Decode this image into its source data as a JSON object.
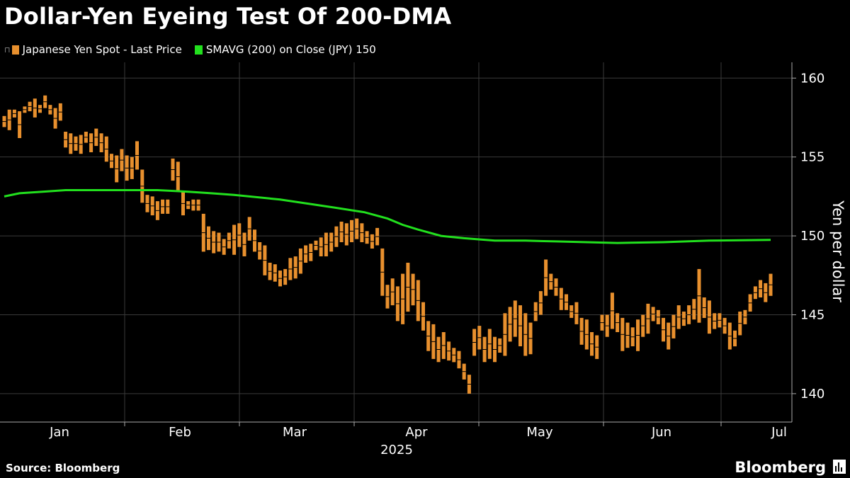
{
  "header": {
    "title": "Dollar-Yen Eyeing Test Of 200-DMA"
  },
  "legend": {
    "series1": "Japanese Yen Spot - Last Price",
    "series2": "SMAVG (200)  on Close (JPY) 150"
  },
  "footer": {
    "source": "Source: Bloomberg",
    "brand": "Bloomberg"
  },
  "colors": {
    "bars": "#e8902e",
    "sma": "#22e01e",
    "grid": "#3a3a3a",
    "background": "#000000"
  },
  "chart_data": {
    "type": "bar",
    "subtype": "floating-range",
    "ylabel": "Yen per dollar",
    "ylim": [
      138.2,
      161
    ],
    "y_ticks": [
      140,
      145,
      150,
      155,
      160
    ],
    "x_ticks": [
      "Jan",
      "Feb",
      "Mar",
      "Apr",
      "May",
      "Jun",
      "Jul"
    ],
    "x_year_label": "2025",
    "grid": true,
    "series": [
      {
        "name": "Japanese Yen Spot - Last Price",
        "ranges": [
          [
            156.9,
            157.6
          ],
          [
            156.7,
            158.0
          ],
          [
            157.5,
            158.0
          ],
          [
            156.2,
            157.9
          ],
          [
            157.8,
            158.2
          ],
          [
            157.9,
            158.5
          ],
          [
            157.5,
            158.7
          ],
          [
            157.8,
            158.3
          ],
          [
            158.1,
            158.9
          ],
          [
            157.7,
            158.3
          ],
          [
            156.8,
            158.1
          ],
          [
            157.3,
            158.4
          ],
          [
            155.6,
            156.6
          ],
          [
            155.2,
            156.5
          ],
          [
            155.4,
            156.3
          ],
          [
            155.2,
            156.4
          ],
          [
            155.9,
            156.6
          ],
          [
            155.3,
            156.5
          ],
          [
            155.7,
            156.8
          ],
          [
            155.3,
            156.5
          ],
          [
            154.7,
            156.3
          ],
          [
            154.3,
            155.2
          ],
          [
            153.4,
            155.1
          ],
          [
            154.1,
            155.5
          ],
          [
            153.5,
            155.1
          ],
          [
            153.6,
            155.0
          ],
          [
            154.2,
            156.0
          ],
          [
            152.1,
            154.2
          ],
          [
            151.5,
            152.6
          ],
          [
            151.3,
            152.5
          ],
          [
            151.0,
            152.2
          ],
          [
            151.4,
            152.3
          ],
          [
            151.4,
            152.3
          ],
          [
            153.5,
            154.9
          ],
          [
            152.8,
            154.7
          ],
          [
            151.3,
            152.8
          ],
          [
            151.7,
            152.2
          ],
          [
            151.6,
            152.3
          ],
          [
            151.6,
            152.3
          ],
          [
            149.0,
            151.4
          ],
          [
            149.1,
            150.6
          ],
          [
            148.9,
            150.3
          ],
          [
            149.0,
            150.2
          ],
          [
            148.8,
            149.8
          ],
          [
            149.2,
            150.2
          ],
          [
            148.8,
            150.7
          ],
          [
            149.3,
            150.8
          ],
          [
            148.7,
            150.2
          ],
          [
            149.7,
            151.2
          ],
          [
            149.0,
            150.4
          ],
          [
            148.5,
            149.6
          ],
          [
            147.5,
            149.4
          ],
          [
            147.2,
            148.3
          ],
          [
            147.1,
            148.2
          ],
          [
            146.8,
            147.8
          ],
          [
            146.9,
            147.9
          ],
          [
            147.2,
            148.6
          ],
          [
            147.3,
            148.7
          ],
          [
            147.6,
            149.2
          ],
          [
            148.3,
            149.4
          ],
          [
            148.4,
            149.5
          ],
          [
            149.1,
            149.7
          ],
          [
            148.7,
            149.9
          ],
          [
            148.7,
            150.2
          ],
          [
            149.0,
            150.2
          ],
          [
            149.3,
            150.6
          ],
          [
            149.6,
            150.9
          ],
          [
            149.4,
            150.8
          ],
          [
            149.6,
            151.0
          ],
          [
            149.8,
            151.1
          ],
          [
            149.6,
            150.8
          ],
          [
            149.5,
            150.3
          ],
          [
            149.2,
            150.1
          ],
          [
            149.4,
            150.5
          ],
          [
            146.2,
            149.2
          ],
          [
            145.4,
            146.9
          ],
          [
            145.6,
            147.3
          ],
          [
            144.6,
            146.8
          ],
          [
            144.4,
            147.6
          ],
          [
            145.2,
            148.3
          ],
          [
            145.6,
            147.6
          ],
          [
            144.6,
            147.2
          ],
          [
            144.0,
            145.8
          ],
          [
            142.7,
            144.6
          ],
          [
            142.2,
            144.4
          ],
          [
            142.0,
            143.6
          ],
          [
            142.2,
            143.9
          ],
          [
            142.1,
            143.3
          ],
          [
            142.0,
            142.9
          ],
          [
            141.6,
            142.7
          ],
          [
            140.9,
            141.9
          ],
          [
            140.0,
            141.2
          ],
          [
            142.4,
            144.1
          ],
          [
            142.8,
            144.3
          ],
          [
            142.0,
            143.6
          ],
          [
            142.2,
            144.1
          ],
          [
            142.0,
            143.6
          ],
          [
            142.6,
            143.5
          ],
          [
            142.4,
            145.1
          ],
          [
            143.3,
            145.5
          ],
          [
            143.6,
            145.9
          ],
          [
            143.0,
            145.6
          ],
          [
            142.4,
            145.1
          ],
          [
            142.5,
            144.5
          ],
          [
            144.6,
            145.8
          ],
          [
            145.0,
            146.5
          ],
          [
            146.2,
            148.5
          ],
          [
            146.6,
            147.6
          ],
          [
            146.2,
            147.3
          ],
          [
            145.3,
            146.7
          ],
          [
            145.3,
            146.3
          ],
          [
            144.8,
            145.6
          ],
          [
            144.4,
            145.8
          ],
          [
            143.1,
            144.8
          ],
          [
            142.8,
            144.7
          ],
          [
            142.4,
            143.9
          ],
          [
            142.2,
            143.7
          ],
          [
            144.0,
            145.0
          ],
          [
            143.6,
            145.0
          ],
          [
            144.1,
            146.4
          ],
          [
            143.9,
            145.1
          ],
          [
            142.7,
            144.8
          ],
          [
            142.9,
            144.5
          ],
          [
            143.0,
            144.2
          ],
          [
            142.7,
            144.7
          ],
          [
            143.6,
            145.0
          ],
          [
            143.8,
            145.7
          ],
          [
            144.6,
            145.5
          ],
          [
            144.4,
            145.3
          ],
          [
            143.3,
            144.8
          ],
          [
            142.8,
            144.5
          ],
          [
            143.5,
            145.0
          ],
          [
            144.1,
            145.6
          ],
          [
            144.3,
            145.2
          ],
          [
            144.4,
            145.6
          ],
          [
            144.7,
            146.0
          ],
          [
            144.5,
            147.9
          ],
          [
            144.8,
            146.1
          ],
          [
            143.8,
            145.9
          ],
          [
            144.1,
            145.1
          ],
          [
            144.2,
            145.1
          ],
          [
            143.8,
            144.8
          ],
          [
            142.8,
            144.5
          ],
          [
            143.0,
            144.0
          ],
          [
            143.7,
            145.2
          ],
          [
            144.4,
            145.3
          ],
          [
            145.2,
            146.3
          ],
          [
            146.0,
            146.8
          ],
          [
            146.1,
            147.2
          ],
          [
            145.8,
            147.0
          ],
          [
            146.2,
            147.6
          ]
        ]
      },
      {
        "name": "SMAVG (200)  on Close (JPY) 150",
        "x": [
          0,
          0.02,
          0.05,
          0.08,
          0.12,
          0.16,
          0.2,
          0.24,
          0.27,
          0.3,
          0.36,
          0.43,
          0.47,
          0.5,
          0.52,
          0.54,
          0.57,
          0.6,
          0.64,
          0.68,
          0.72,
          0.76,
          0.8,
          0.86,
          0.92,
          1.0
        ],
        "values": [
          152.5,
          152.7,
          152.8,
          152.9,
          152.9,
          152.9,
          152.9,
          152.8,
          152.7,
          152.6,
          152.3,
          151.8,
          151.5,
          151.1,
          150.7,
          150.4,
          150.0,
          149.85,
          149.7,
          149.7,
          149.65,
          149.6,
          149.55,
          149.6,
          149.7,
          149.75
        ]
      }
    ]
  }
}
